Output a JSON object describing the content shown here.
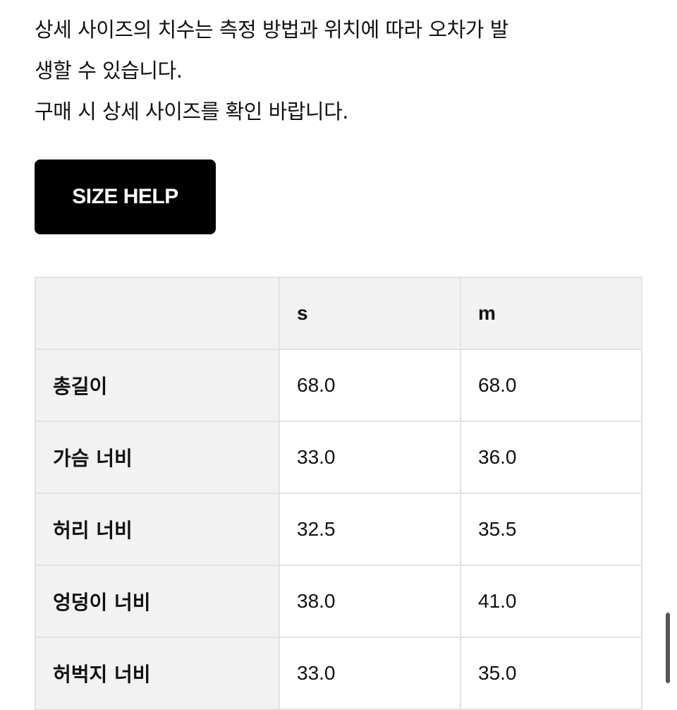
{
  "notice": {
    "lines": [
      "상세 사이즈의 치수는 측정 방법과 위치에 따라 오차가 발",
      "생할 수 있습니다.",
      "구매 시 상세 사이즈를 확인 바랍니다."
    ]
  },
  "size_help_button": "SIZE HELP",
  "table": {
    "headers": [
      "",
      "s",
      "m"
    ],
    "rows": [
      {
        "label": "총길이",
        "s": "68.0",
        "m": "68.0"
      },
      {
        "label": "가슴 너비",
        "s": "33.0",
        "m": "36.0"
      },
      {
        "label": "허리 너비",
        "s": "32.5",
        "m": "35.5"
      },
      {
        "label": "엉덩이 너비",
        "s": "38.0",
        "m": "41.0"
      },
      {
        "label": "허벅지 너비",
        "s": "33.0",
        "m": "35.0"
      }
    ]
  },
  "colors": {
    "button_bg": "#000000",
    "header_bg": "#f2f2f2",
    "border": "#e2e2e2"
  }
}
